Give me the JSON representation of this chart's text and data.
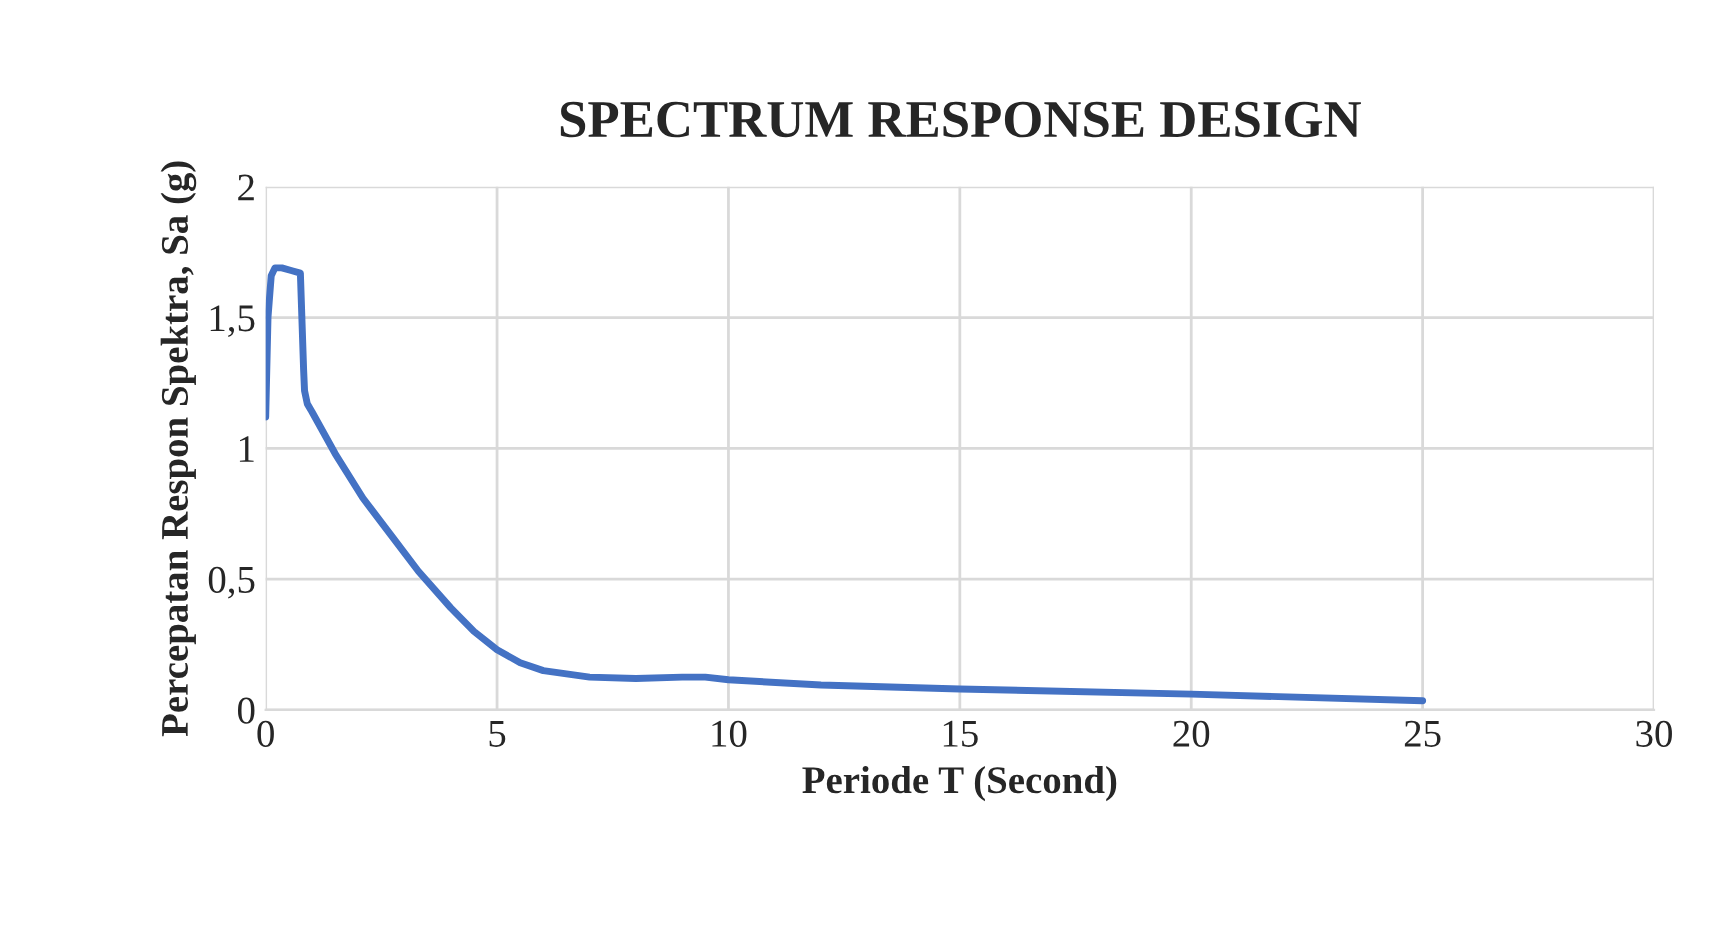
{
  "chart_data": {
    "type": "line",
    "title": "SPECTRUM RESPONSE DESIGN",
    "xlabel": "Periode T (Second)",
    "ylabel": "Percepatan Respon Spektra, Sa (g)",
    "series": [
      {
        "color": "#4472c4",
        "x": [
          0,
          0.05,
          0.12,
          0.2,
          0.35,
          0.55,
          0.75,
          0.82,
          0.84,
          0.9,
          1.0,
          1.5,
          2.1,
          2.7,
          3.3,
          4.0,
          4.5,
          5.0,
          5.5,
          6.0,
          7.0,
          8.0,
          9.0,
          9.5,
          10.0,
          12.0,
          15.0,
          20.0,
          25.0
        ],
        "values": [
          1.12,
          1.5,
          1.66,
          1.69,
          1.69,
          1.68,
          1.67,
          1.3,
          1.22,
          1.17,
          1.14,
          0.98,
          0.81,
          0.67,
          0.53,
          0.39,
          0.3,
          0.23,
          0.18,
          0.15,
          0.125,
          0.12,
          0.125,
          0.125,
          0.115,
          0.095,
          0.08,
          0.06,
          0.035
        ]
      }
    ],
    "xlim": [
      0,
      30
    ],
    "xticks": [
      0,
      5,
      10,
      15,
      20,
      25,
      30
    ],
    "ylim": [
      0,
      2
    ],
    "yticks": [
      0,
      {
        "value": 0.5,
        "label": "0,5"
      },
      1,
      {
        "value": 1.5,
        "label": "1,5"
      },
      2
    ],
    "grid": true,
    "marker": "none",
    "line_style": "solid"
  }
}
